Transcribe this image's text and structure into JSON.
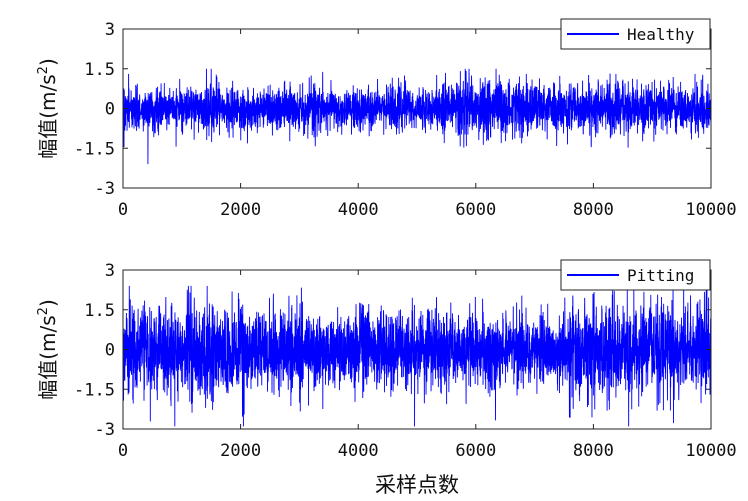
{
  "chart_data": [
    {
      "type": "line",
      "title": "",
      "xlabel": "",
      "ylabel": "幅值(m/s",
      "ylabel_sup": "2",
      "ylabel_close": ")",
      "xlim": [
        0,
        10000
      ],
      "ylim": [
        -3,
        3
      ],
      "xticks": [
        0,
        2000,
        4000,
        6000,
        8000,
        10000
      ],
      "xtick_labels": [
        "0",
        "2000",
        "4000",
        "6000",
        "8000",
        "10000"
      ],
      "yticks": [
        3,
        1.5,
        0,
        -1.5,
        -3
      ],
      "ytick_labels": [
        "3",
        "1.5",
        "0",
        "-1.5",
        "-3"
      ],
      "legend_position": "top-right",
      "grid": false,
      "series": [
        {
          "name": "Healthy",
          "color": "#0000ff",
          "n_points": 10000,
          "typical_amplitude": 1.0,
          "peak_max": 1.5,
          "peak_min": -2.1
        }
      ]
    },
    {
      "type": "line",
      "title": "",
      "xlabel": "采样点数",
      "ylabel": "幅值(m/s",
      "ylabel_sup": "2",
      "ylabel_close": ")",
      "xlim": [
        0,
        10000
      ],
      "ylim": [
        -3,
        3
      ],
      "xticks": [
        0,
        2000,
        4000,
        6000,
        8000,
        10000
      ],
      "xtick_labels": [
        "0",
        "2000",
        "4000",
        "6000",
        "8000",
        "10000"
      ],
      "yticks": [
        3,
        1.5,
        0,
        -1.5,
        -3
      ],
      "ytick_labels": [
        "3",
        "1.5",
        "0",
        "-1.5",
        "-3"
      ],
      "legend_position": "top-right",
      "grid": false,
      "series": [
        {
          "name": "Pitting",
          "color": "#0000ff",
          "n_points": 10000,
          "typical_amplitude": 1.6,
          "peak_max": 2.4,
          "peak_min": -2.9
        }
      ]
    }
  ]
}
